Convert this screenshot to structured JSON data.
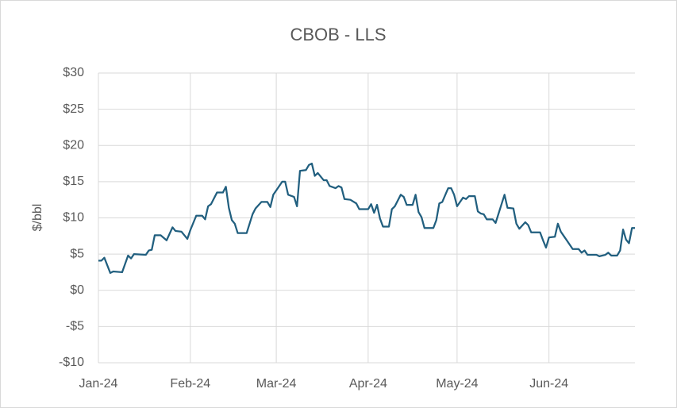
{
  "chart_data": {
    "type": "line",
    "title": "CBOB - LLS",
    "y_label": "$/bbl",
    "xlim": [
      0,
      181
    ],
    "xticks": [
      {
        "value": 0,
        "label": "Jan-24"
      },
      {
        "value": 31,
        "label": "Feb-24"
      },
      {
        "value": 60,
        "label": "Mar-24"
      },
      {
        "value": 91,
        "label": "Apr-24"
      },
      {
        "value": 121,
        "label": "May-24"
      },
      {
        "value": 152,
        "label": "Jun-24"
      }
    ],
    "ylim": [
      -10,
      30
    ],
    "yticks": [
      {
        "value": -10,
        "label": "-$10"
      },
      {
        "value": -5,
        "label": "-$5"
      },
      {
        "value": 0,
        "label": "$0"
      },
      {
        "value": 5,
        "label": "$5"
      },
      {
        "value": 10,
        "label": "$10"
      },
      {
        "value": 15,
        "label": "$15"
      },
      {
        "value": 20,
        "label": "$20"
      },
      {
        "value": 25,
        "label": "$25"
      },
      {
        "value": 30,
        "label": "$30"
      }
    ],
    "grid": true,
    "series": [
      {
        "name": "CBOB - LLS",
        "color": "#215f7f",
        "x": [
          0,
          1,
          2,
          4,
          5,
          8,
          10,
          11,
          12,
          16,
          17,
          18,
          19,
          21,
          23,
          25,
          26,
          28,
          30,
          31,
          33,
          35,
          36,
          37,
          38,
          40,
          42,
          43,
          44,
          45,
          46,
          47,
          50,
          52,
          53,
          55,
          57,
          58,
          59,
          60,
          62,
          63,
          64,
          66,
          67,
          68,
          70,
          71,
          72,
          73,
          74,
          76,
          77,
          78,
          80,
          81,
          82,
          83,
          85,
          87,
          88,
          91,
          92,
          93,
          94,
          95,
          96,
          98,
          99,
          100,
          102,
          103,
          104,
          106,
          107,
          108,
          109,
          110,
          113,
          114,
          115,
          116,
          118,
          119,
          120,
          121,
          123,
          124,
          125,
          127,
          128,
          129,
          130,
          131,
          133,
          134,
          136,
          137,
          138,
          140,
          141,
          142,
          144,
          145,
          146,
          148,
          149,
          150,
          151,
          152,
          154,
          155,
          156,
          157,
          158,
          160,
          162,
          163,
          164,
          165,
          168,
          169,
          171,
          172,
          173,
          175,
          176,
          177,
          178,
          179,
          180,
          181
        ],
        "values": [
          4.1,
          4.1,
          4.5,
          2.4,
          2.6,
          2.5,
          4.8,
          4.4,
          5.0,
          4.9,
          5.5,
          5.6,
          7.6,
          7.6,
          6.9,
          8.7,
          8.2,
          8.1,
          7.1,
          8.3,
          10.3,
          10.3,
          9.8,
          11.6,
          11.9,
          13.5,
          13.5,
          14.3,
          11.4,
          9.7,
          9.2,
          7.9,
          7.9,
          10.5,
          11.3,
          12.2,
          12.2,
          11.5,
          13.2,
          13.8,
          15.0,
          15.0,
          13.2,
          12.9,
          11.6,
          16.5,
          16.6,
          17.3,
          17.5,
          15.8,
          16.2,
          15.2,
          15.2,
          14.4,
          14.1,
          14.4,
          14.2,
          12.6,
          12.5,
          12.0,
          11.2,
          11.2,
          11.9,
          10.7,
          11.8,
          9.9,
          8.8,
          8.8,
          11.2,
          11.6,
          13.2,
          12.9,
          11.8,
          11.8,
          13.2,
          10.8,
          10.1,
          8.6,
          8.6,
          9.7,
          12.0,
          12.2,
          14.1,
          14.1,
          13.2,
          11.6,
          12.8,
          12.6,
          13.0,
          13.0,
          10.9,
          10.6,
          10.5,
          9.8,
          9.8,
          9.3,
          11.9,
          13.2,
          11.4,
          11.3,
          9.2,
          8.5,
          9.4,
          9.0,
          8.0,
          8.0,
          8.0,
          6.9,
          5.9,
          7.3,
          7.4,
          9.2,
          8.1,
          7.5,
          6.9,
          5.7,
          5.7,
          5.2,
          5.5,
          4.9,
          4.9,
          4.7,
          4.9,
          5.2,
          4.8,
          4.8,
          5.5,
          8.4,
          7.0,
          6.5,
          8.6,
          8.6
        ]
      }
    ]
  }
}
